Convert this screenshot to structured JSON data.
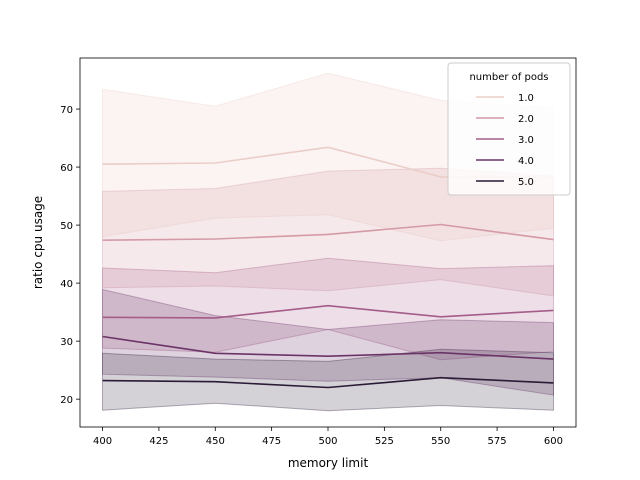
{
  "chart_data": {
    "type": "line",
    "title": "",
    "xlabel": "memory limit",
    "ylabel": "ratio cpu usage",
    "xlim": [
      390,
      610
    ],
    "ylim": [
      15.2,
      78.8
    ],
    "x": [
      400,
      450,
      500,
      550,
      600
    ],
    "xticks": [
      400,
      425,
      450,
      475,
      500,
      525,
      550,
      575,
      600
    ],
    "yticks": [
      20,
      30,
      40,
      50,
      60,
      70
    ],
    "grid": false,
    "legend": {
      "title": "number of pods",
      "position": "top-right"
    },
    "series": [
      {
        "name": "1.0",
        "color": "#ebcdc7",
        "band_opacity": 0.22,
        "values": [
          60.5,
          60.7,
          63.4,
          58.3,
          58.2
        ],
        "lower": [
          48.0,
          51.2,
          51.8,
          47.3,
          49.5
        ],
        "upper": [
          73.4,
          70.5,
          76.2,
          71.5,
          70.2
        ]
      },
      {
        "name": "2.0",
        "color": "#d49aa6",
        "band_opacity": 0.22,
        "values": [
          47.4,
          47.6,
          48.4,
          50.1,
          47.5
        ],
        "lower": [
          39.2,
          39.5,
          38.7,
          40.6,
          37.8
        ],
        "upper": [
          55.8,
          56.3,
          59.3,
          59.8,
          58.4
        ]
      },
      {
        "name": "3.0",
        "color": "#a55c88",
        "band_opacity": 0.2,
        "values": [
          34.1,
          34.0,
          36.1,
          34.2,
          35.3
        ],
        "lower": [
          28.8,
          28.1,
          32.0,
          26.8,
          28.2
        ],
        "upper": [
          42.6,
          41.8,
          44.3,
          42.5,
          43.0
        ]
      },
      {
        "name": "4.0",
        "color": "#6b3468",
        "band_opacity": 0.22,
        "values": [
          30.8,
          27.9,
          27.4,
          28.0,
          26.9
        ],
        "lower": [
          24.3,
          23.8,
          23.1,
          23.7,
          20.7
        ],
        "upper": [
          38.9,
          34.4,
          32.0,
          33.7,
          33.2
        ]
      },
      {
        "name": "5.0",
        "color": "#2a1b36",
        "band_opacity": 0.2,
        "values": [
          23.2,
          23.0,
          22.0,
          23.7,
          22.8
        ],
        "lower": [
          18.1,
          19.3,
          18.0,
          18.9,
          18.1
        ],
        "upper": [
          27.9,
          26.9,
          26.5,
          28.6,
          28.0
        ]
      }
    ]
  }
}
